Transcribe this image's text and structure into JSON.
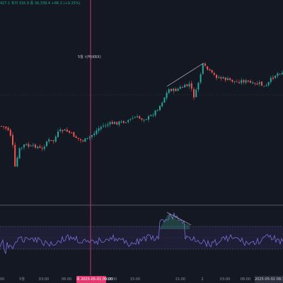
{
  "header": {
    "legend_text": "427.1 최저 316.9 종 36,338.4 +86.3 (+0.25%)"
  },
  "annotation": {
    "text": "5월 시작(KRX)"
  },
  "time_axis": {
    "ticks": [
      "00",
      "5월",
      "03:00",
      "06:00",
      "12:00",
      "15:00",
      "21:00",
      "2",
      "03:00",
      "06:00"
    ],
    "highlight_label": "목 2025-05-01 09:00",
    "right_label": "2025-05-02 08:15"
  },
  "colors": {
    "background": "#141823",
    "up": "#26a69a",
    "down": "#ef5350",
    "crosshair": "#e0386f",
    "indicator": "#7b6fd6"
  }
}
